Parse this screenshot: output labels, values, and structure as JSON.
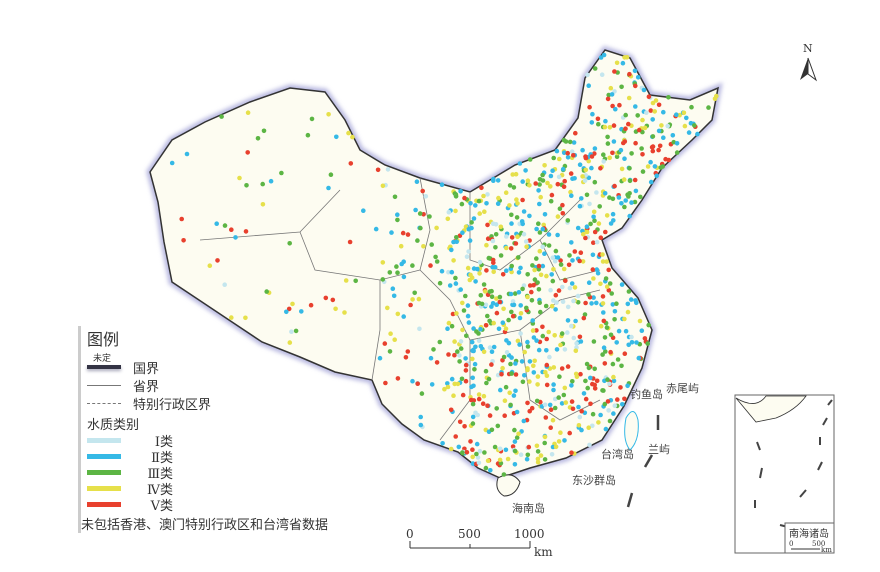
{
  "legend": {
    "title": "图例",
    "undetermined_label": "未定",
    "items": [
      {
        "label": "国界"
      },
      {
        "label": "省界"
      },
      {
        "label": "特别行政区界"
      }
    ],
    "water_quality_title": "水质类别",
    "classes": [
      {
        "label": "Ⅰ类",
        "color": "#c4e6ee"
      },
      {
        "label": "Ⅱ类",
        "color": "#35b9e6"
      },
      {
        "label": "Ⅲ类",
        "color": "#5cb544"
      },
      {
        "label": "Ⅳ类",
        "color": "#e6e04a"
      },
      {
        "label": "Ⅴ类",
        "color": "#e8402e"
      }
    ],
    "note": "未包括香港、澳门特别行政区和台湾省数据"
  },
  "scale": {
    "ticks": [
      "0",
      "500",
      "1000"
    ],
    "unit": "km"
  },
  "north": "N",
  "places": {
    "diaoyu": "钓鱼岛",
    "chiwei": "赤尾屿",
    "taiwan": "台湾岛",
    "lanyu": "兰屿",
    "dongsha": "东沙群岛",
    "hainan": "海南岛"
  },
  "inset": {
    "title": "南海诸岛",
    "ticks": [
      "0",
      "500"
    ],
    "unit": "km"
  },
  "colors": {
    "land": "#fdfcf1",
    "border": "#333",
    "border_halo": "#b8b8e0"
  }
}
